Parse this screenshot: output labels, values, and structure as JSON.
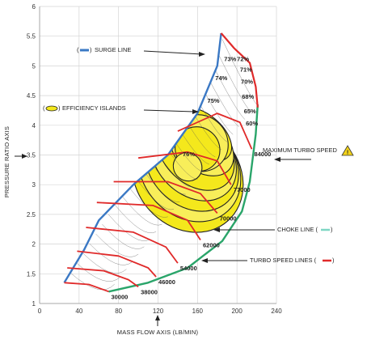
{
  "chart_data": {
    "type": "compressor-map",
    "xlabel": "MASS FLOW AXIS (LB/MIN)",
    "ylabel": "PRESSURE RATIO AXIS",
    "xlim": [
      0,
      240
    ],
    "ylim": [
      1,
      6
    ],
    "xticks": [
      "0",
      "40",
      "80",
      "120",
      "160",
      "200",
      "240"
    ],
    "yticks": [
      "1",
      "1.5",
      "2",
      "2.5",
      "3",
      "3.5",
      "4",
      "4.5",
      "5",
      "5.5",
      "6"
    ],
    "surge_line": [
      [
        25,
        1.35
      ],
      [
        45,
        1.9
      ],
      [
        60,
        2.4
      ],
      [
        95,
        3.0
      ],
      [
        130,
        3.5
      ],
      [
        160,
        4.2
      ],
      [
        180,
        5.0
      ],
      [
        184,
        5.55
      ]
    ],
    "choke_line": [
      [
        70,
        1.2
      ],
      [
        110,
        1.35
      ],
      [
        150,
        1.6
      ],
      [
        185,
        2.05
      ],
      [
        205,
        2.55
      ],
      [
        213,
        3.05
      ],
      [
        219,
        3.85
      ],
      [
        221,
        4.35
      ]
    ],
    "max_speed_line": [
      [
        184,
        5.55
      ],
      [
        197,
        5.3
      ],
      [
        213,
        5.05
      ],
      [
        219,
        4.65
      ],
      [
        221,
        4.3
      ]
    ],
    "speed_lines": [
      {
        "label": "30000",
        "value": 30000,
        "points": [
          [
            25,
            1.35
          ],
          [
            50,
            1.32
          ],
          [
            70,
            1.2
          ]
        ]
      },
      {
        "label": "38000",
        "value": 38000,
        "points": [
          [
            28,
            1.6
          ],
          [
            65,
            1.55
          ],
          [
            90,
            1.4
          ],
          [
            100,
            1.28
          ]
        ]
      },
      {
        "label": "46000",
        "value": 46000,
        "points": [
          [
            38,
            1.88
          ],
          [
            80,
            1.8
          ],
          [
            110,
            1.6
          ],
          [
            118,
            1.45
          ]
        ]
      },
      {
        "label": "54000",
        "value": 54000,
        "points": [
          [
            47,
            2.28
          ],
          [
            95,
            2.2
          ],
          [
            128,
            1.95
          ],
          [
            140,
            1.68
          ]
        ]
      },
      {
        "label": "62000",
        "value": 62000,
        "points": [
          [
            58,
            2.7
          ],
          [
            115,
            2.65
          ],
          [
            150,
            2.4
          ],
          [
            163,
            2.07
          ]
        ]
      },
      {
        "label": "70000",
        "value": 70000,
        "points": [
          [
            75,
            3.05
          ],
          [
            130,
            3.05
          ],
          [
            163,
            2.85
          ],
          [
            180,
            2.52
          ]
        ]
      },
      {
        "label": "77000",
        "value": 77000,
        "points": [
          [
            100,
            3.45
          ],
          [
            150,
            3.55
          ],
          [
            180,
            3.4
          ],
          [
            194,
            3.0
          ]
        ]
      },
      {
        "label": "84000",
        "value": 84000,
        "points": [
          [
            140,
            3.9
          ],
          [
            180,
            4.2
          ],
          [
            203,
            4.05
          ],
          [
            215,
            3.6
          ]
        ]
      }
    ],
    "efficiency_islands": [
      {
        "label": "60%",
        "value": 60,
        "cx": 150,
        "cy": 3.15,
        "rx": 52,
        "ry": 1.85,
        "rot": 42
      },
      {
        "label": "65%",
        "value": 65,
        "cx": 152,
        "cy": 3.25,
        "rx": 47,
        "ry": 1.72,
        "rot": 43
      },
      {
        "label": "68%",
        "value": 68,
        "cx": 154,
        "cy": 3.35,
        "rx": 42,
        "ry": 1.6,
        "rot": 44
      },
      {
        "label": "70%",
        "value": 70,
        "cx": 156,
        "cy": 3.45,
        "rx": 37,
        "ry": 1.48,
        "rot": 45
      },
      {
        "label": "71%",
        "value": 71,
        "cx": 158,
        "cy": 3.55,
        "rx": 32,
        "ry": 1.36,
        "rot": 46
      },
      {
        "label": "72%",
        "value": 72,
        "cx": 162,
        "cy": 3.7,
        "rx": 26,
        "ry": 1.22,
        "rot": 48
      },
      {
        "label": "73%",
        "value": 73,
        "cx": 165,
        "cy": 3.85,
        "rx": 20,
        "ry": 1.05,
        "rot": 50
      },
      {
        "label": "74%",
        "value": 74,
        "cx": 162,
        "cy": 3.7,
        "rx": 28,
        "ry": 0.9,
        "rot": 50
      },
      {
        "label": "75%",
        "value": 75,
        "cx": 160,
        "cy": 3.6,
        "rx": 22,
        "ry": 0.7,
        "rot": 50
      },
      {
        "label": "76%",
        "value": 76,
        "cx": 150,
        "cy": 3.3,
        "rx": 14,
        "ry": 0.45,
        "rot": 52
      }
    ],
    "colors": {
      "surge": "#3a78c4",
      "choke": "#2aa56a",
      "speed": "#e02a2a",
      "island_fill": "#f4e81c",
      "island_stroke": "#222222",
      "warning": "#f2d21a"
    }
  },
  "annotations": {
    "surge_line": "SURGE LINE",
    "efficiency_islands": "EFFICIENCY ISLANDS",
    "maximum_turbo_speed": "MAXIMUM TURBO SPEED",
    "choke_line": "CHOKE LINE (",
    "turbo_speed_lines": "TURBO SPEED LINES (",
    "paren_open": "(",
    "paren_close": ")",
    "warning_icon": "warning-icon"
  }
}
